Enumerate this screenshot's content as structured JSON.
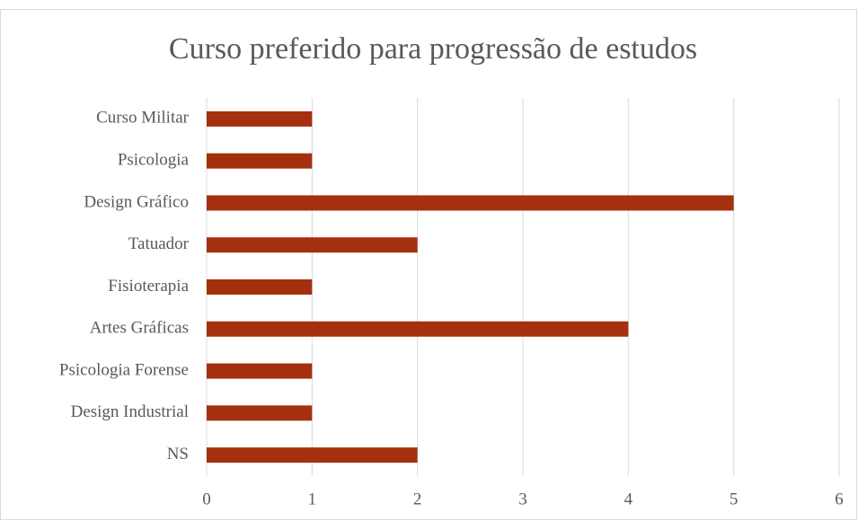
{
  "chart_data": {
    "type": "bar",
    "orientation": "horizontal",
    "title": "Curso preferido para progressão de estudos",
    "categories": [
      "Curso Militar",
      "Psicologia",
      "Design Gráfico",
      "Tatuador",
      "Fisioterapia",
      "Artes Gráficas",
      "Psicologia Forense",
      "Design Industrial",
      "NS"
    ],
    "values": [
      1,
      1,
      5,
      2,
      1,
      4,
      1,
      1,
      2
    ],
    "color": "#a5300f",
    "xlim": [
      0,
      6
    ],
    "xticks": [
      0,
      1,
      2,
      3,
      4,
      5,
      6
    ],
    "grid": true
  }
}
